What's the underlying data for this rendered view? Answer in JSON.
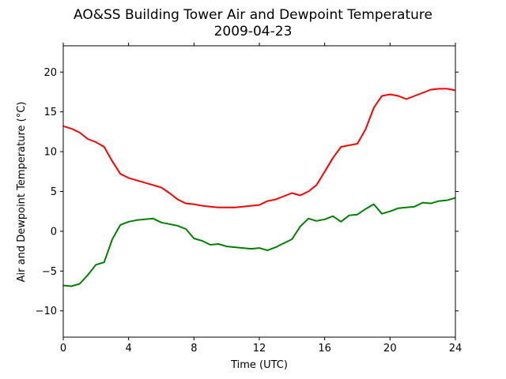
{
  "chart_data": {
    "type": "line",
    "title": "AO&SS Building Tower Air and Dewpoint Temperature",
    "subtitle": "2009-04-23",
    "xlabel": "Time (UTC)",
    "ylabel": "Air and Dewpoint Temperature (°C)",
    "xlim": [
      0,
      24
    ],
    "ylim": [
      -13.3,
      23.3
    ],
    "xticks": [
      0,
      4,
      8,
      12,
      16,
      20,
      24
    ],
    "yticks": [
      -10,
      -5,
      0,
      5,
      10,
      15,
      20
    ],
    "grid": false,
    "legend": "none",
    "series": [
      {
        "color": "#ff0000",
        "x": [
          0,
          0.5,
          1,
          1.5,
          2,
          2.5,
          3,
          3.5,
          4,
          4.5,
          5,
          5.5,
          6,
          6.5,
          7,
          7.5,
          8,
          8.5,
          9,
          9.5,
          10,
          10.5,
          11,
          11.5,
          12,
          12.5,
          13,
          13.5,
          14,
          14.5,
          15,
          15.5,
          16,
          16.5,
          17,
          17.5,
          18,
          18.5,
          19,
          19.5,
          20,
          20.5,
          21,
          21.5,
          22,
          22.5,
          23,
          23.5,
          24
        ],
        "values": [
          13.2,
          12.9,
          12.4,
          11.6,
          11.2,
          10.6,
          8.8,
          7.2,
          6.7,
          6.4,
          6.1,
          5.8,
          5.5,
          4.8,
          4.0,
          3.5,
          3.4,
          3.2,
          3.1,
          3.0,
          3.0,
          3.0,
          3.1,
          3.2,
          3.3,
          3.8,
          4.0,
          4.4,
          4.8,
          4.5,
          5.0,
          5.8,
          7.5,
          9.2,
          10.6,
          10.8,
          11.0,
          12.8,
          15.5,
          17.0,
          17.2,
          17.0,
          16.6,
          17.0,
          17.4,
          17.8,
          17.9,
          17.9,
          17.7
        ]
      },
      {
        "color": "#008000",
        "x": [
          0,
          0.5,
          1,
          1.5,
          2,
          2.5,
          3,
          3.5,
          4,
          4.5,
          5,
          5.5,
          6,
          6.5,
          7,
          7.5,
          8,
          8.5,
          9,
          9.5,
          10,
          10.5,
          11,
          11.5,
          12,
          12.5,
          13,
          13.5,
          14,
          14.5,
          15,
          15.5,
          16,
          16.5,
          17,
          17.5,
          18,
          18.5,
          19,
          19.5,
          20,
          20.5,
          21,
          21.5,
          22,
          22.5,
          23,
          23.5,
          24
        ],
        "values": [
          -6.8,
          -6.9,
          -6.6,
          -5.5,
          -4.2,
          -3.9,
          -1.0,
          0.8,
          1.2,
          1.4,
          1.5,
          1.6,
          1.1,
          0.9,
          0.7,
          0.3,
          -0.9,
          -1.2,
          -1.7,
          -1.6,
          -1.9,
          -2.0,
          -2.1,
          -2.2,
          -2.1,
          -2.4,
          -2.0,
          -1.5,
          -1.0,
          0.6,
          1.6,
          1.3,
          1.5,
          1.9,
          1.2,
          2.0,
          2.1,
          2.8,
          3.4,
          2.2,
          2.5,
          2.9,
          3.0,
          3.1,
          3.6,
          3.5,
          3.8,
          3.9,
          4.2
        ]
      }
    ]
  }
}
